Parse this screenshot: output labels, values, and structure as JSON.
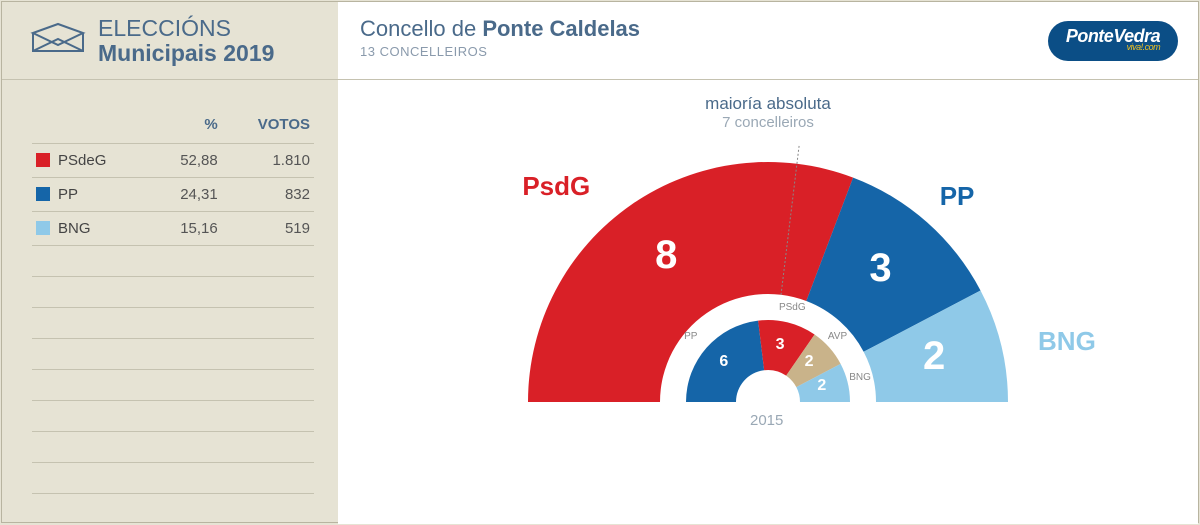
{
  "header": {
    "line1": "ELECCIÓNS",
    "line2": "Municipais 2019",
    "concello_prefix": "Concello de ",
    "concello_name": "Ponte Caldelas",
    "subheading": "13 CONCELLEIROS",
    "logo_top": "PonteVedra",
    "logo_sub": "viva!.com"
  },
  "colors": {
    "background": "#e6e3d4",
    "panel": "#ffffff",
    "textblue": "#4a6a8a",
    "psdg": "#d92027",
    "pp": "#1565a8",
    "bng": "#8fc9e8",
    "avp": "#c9b38a",
    "logo_bg": "#0b4e86"
  },
  "table": {
    "headers": {
      "party": "",
      "percent": "%",
      "votes": "VOTOS"
    },
    "rows": [
      {
        "party": "PSdeG",
        "percent": "52,88",
        "votes": "1.810",
        "color": "#d92027"
      },
      {
        "party": "PP",
        "percent": "24,31",
        "votes": "832",
        "color": "#1565a8"
      },
      {
        "party": "BNG",
        "percent": "15,16",
        "votes": "519",
        "color": "#8fc9e8"
      }
    ],
    "empty_rows": 8
  },
  "chart": {
    "type": "semi-donut",
    "majority_l1": "maioría absoluta",
    "majority_l2": "7 concelleiros",
    "outer_total_seats": 13,
    "outer": [
      {
        "party": "PsdG",
        "seats": 8,
        "color": "#d92027"
      },
      {
        "party": "PP",
        "seats": 3,
        "color": "#1565a8"
      },
      {
        "party": "BNG",
        "seats": 2,
        "color": "#8fc9e8"
      }
    ],
    "outer_labels": {
      "PsdG": {
        "color": "#d92027"
      },
      "PP": {
        "color": "#1565a8"
      },
      "BNG": {
        "color": "#8fc9e8"
      }
    },
    "inner_year": "2015",
    "inner_total_seats": 13,
    "inner": [
      {
        "party": "PP",
        "seats": 6,
        "color": "#1565a8"
      },
      {
        "party": "PSdG",
        "seats": 3,
        "color": "#d92027"
      },
      {
        "party": "AVP",
        "seats": 2,
        "color": "#c9b38a"
      },
      {
        "party": "BNG",
        "seats": 2,
        "color": "#8fc9e8"
      }
    ],
    "outer_radius_out": 240,
    "outer_radius_in": 108,
    "inner_radius_out": 82,
    "inner_radius_in": 32
  }
}
